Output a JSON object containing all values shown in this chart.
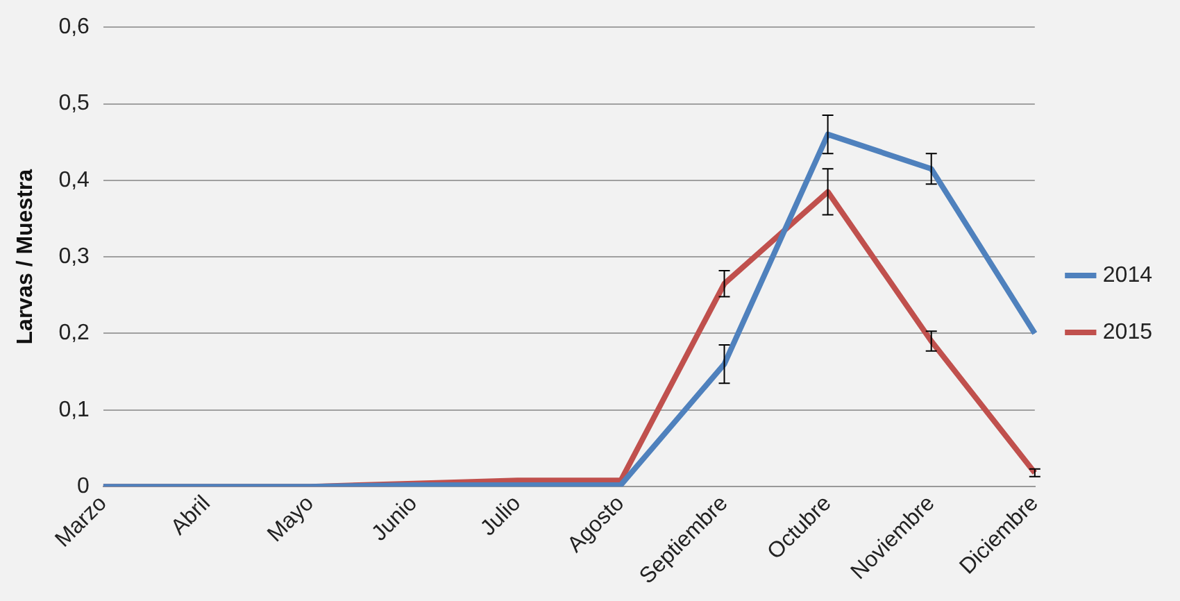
{
  "chart_data": {
    "type": "line",
    "ylabel": "Larvas / Muestra",
    "categories": [
      "Marzo",
      "Abril",
      "Mayo",
      "Junio",
      "Julio",
      "Agosto",
      "Septiembre",
      "Octubre",
      "Noviembre",
      "Diciembre"
    ],
    "series": [
      {
        "name": "2014",
        "color": "#4f81bd",
        "values": [
          0,
          0,
          0,
          0.002,
          0.002,
          0.002,
          0.16,
          0.46,
          0.415,
          0.2
        ],
        "errors": [
          null,
          null,
          null,
          null,
          null,
          null,
          0.025,
          0.025,
          0.02,
          null
        ]
      },
      {
        "name": "2015",
        "color": "#c0504d",
        "values": [
          0,
          0,
          0,
          0.004,
          0.008,
          0.008,
          0.265,
          0.385,
          0.19,
          0.018
        ],
        "errors": [
          null,
          null,
          null,
          null,
          null,
          null,
          0.017,
          0.03,
          0.013,
          0.005
        ]
      }
    ],
    "ylim": [
      0,
      0.6
    ],
    "yticks": [
      0,
      {
        "value": 0.1,
        "label": "0,1"
      },
      {
        "value": 0.2,
        "label": "0,2"
      },
      {
        "value": 0.3,
        "label": "0,3"
      },
      {
        "value": 0.4,
        "label": "0,4"
      },
      {
        "value": 0.5,
        "label": "0,5"
      },
      {
        "value": 0.6,
        "label": "0,6"
      }
    ],
    "grid": "y",
    "legend": "right",
    "marker": "none",
    "line_style": "solid"
  }
}
